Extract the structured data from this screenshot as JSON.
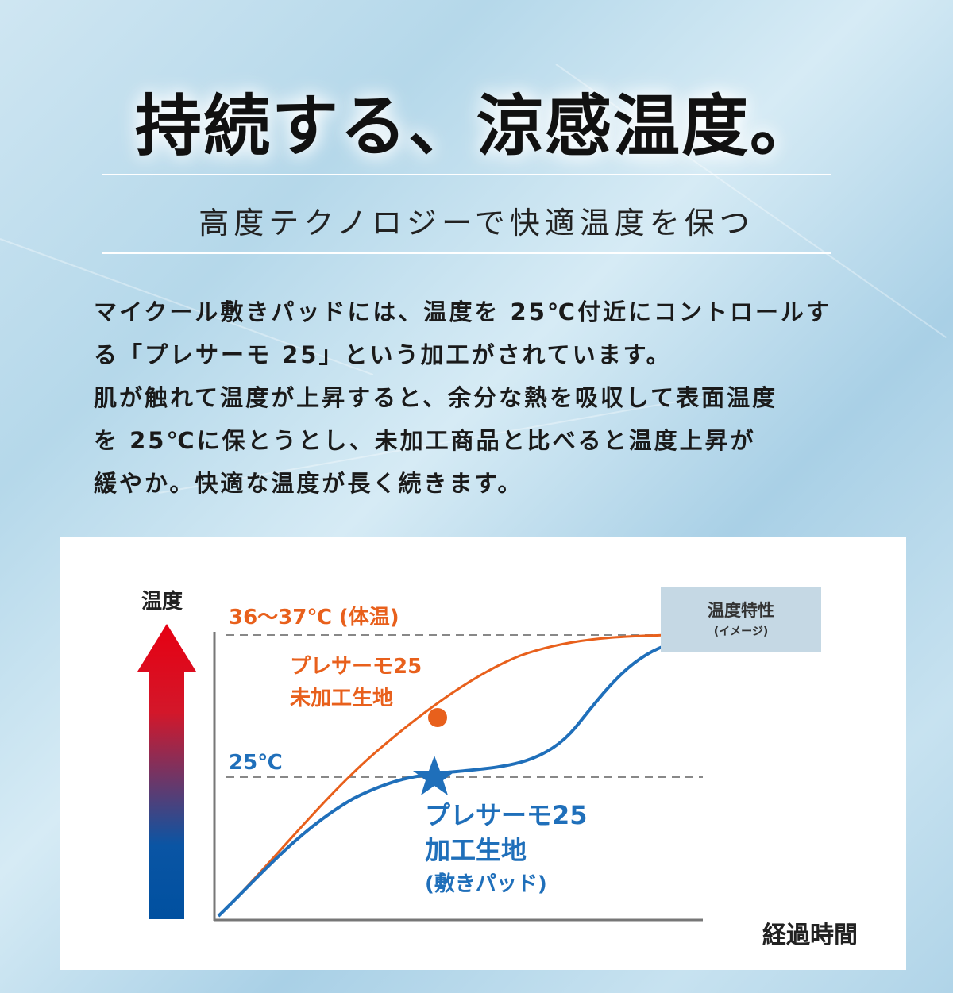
{
  "header": {
    "title": "持続する、涼感温度。",
    "subtitle": "高度テクノロジーで快適温度を保つ"
  },
  "description": {
    "lines": [
      "マイクール敷きパッドには、温度を 25℃付近にコントロールす",
      "る「プレサーモ 25」という加工がされています。",
      "肌が触れて温度が上昇すると、余分な熱を吸収して表面温度",
      "を 25℃に保とうとし、未加工商品と比べると温度上昇が",
      "緩やか。快適な温度が長く続きます。"
    ]
  },
  "chart": {
    "y_axis_label": "温度",
    "x_axis_label": "経過時間",
    "reference_high": "36〜37℃ (体温)",
    "reference_low": "25℃",
    "legend_box": {
      "title": "温度特性",
      "note": "(イメージ)"
    },
    "series_untreated": {
      "line1": "プレサーモ25",
      "line2": "未加工生地",
      "color": "#e8601c"
    },
    "series_treated": {
      "line1": "プレサーモ25",
      "line2": "加工生地",
      "line3": "(敷きパッド)",
      "color": "#1f6fba"
    },
    "arrow_colors": {
      "top": "#e60012",
      "bottom": "#0050a0"
    }
  }
}
